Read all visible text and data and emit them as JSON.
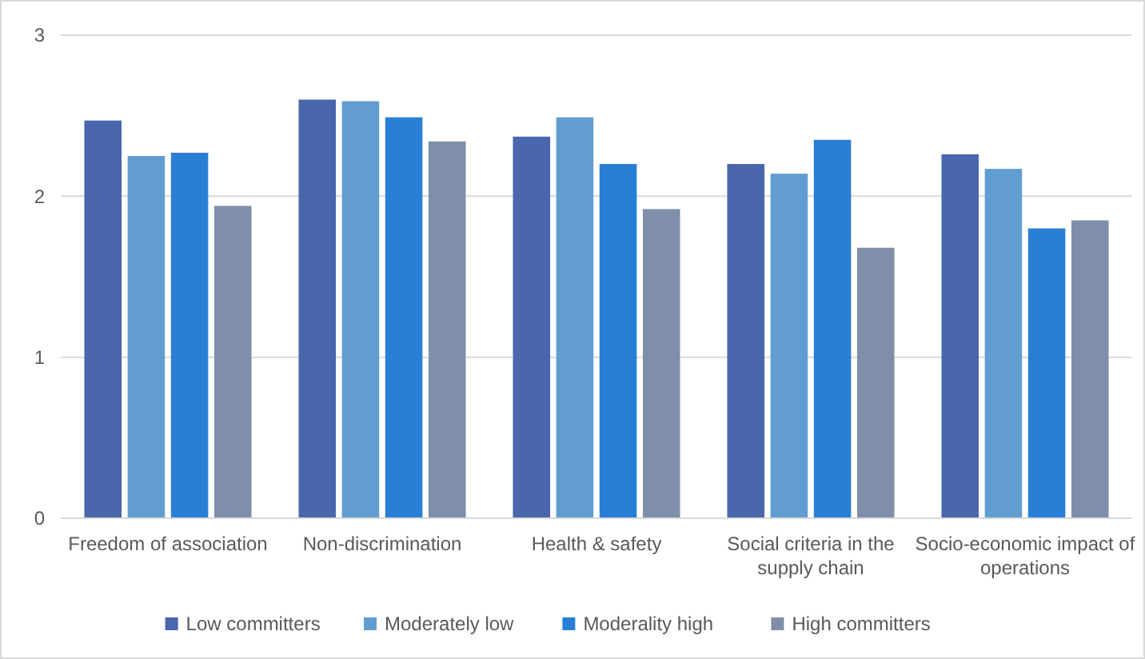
{
  "chart_data": {
    "type": "bar",
    "categories": [
      "Freedom of association",
      "Non-discrimination",
      "Health & safety",
      "Social criteria in the supply chain",
      "Socio-economic impact of operations"
    ],
    "series": [
      {
        "name": "Low committers",
        "color": "#4a66ac",
        "values": [
          2.47,
          2.6,
          2.37,
          2.2,
          2.26
        ]
      },
      {
        "name": "Moderately low",
        "color": "#629dd1",
        "values": [
          2.25,
          2.59,
          2.49,
          2.14,
          2.17
        ]
      },
      {
        "name": "Moderality high",
        "color": "#297fd5",
        "values": [
          2.27,
          2.49,
          2.2,
          2.35,
          1.8
        ]
      },
      {
        "name": "High committers",
        "color": "#7f8fa9",
        "values": [
          1.94,
          2.34,
          1.92,
          1.68,
          1.85
        ]
      }
    ],
    "ylim": [
      0,
      3
    ],
    "yticks": [
      0,
      1,
      2,
      3
    ],
    "grid": "y",
    "legend": "bottom"
  }
}
